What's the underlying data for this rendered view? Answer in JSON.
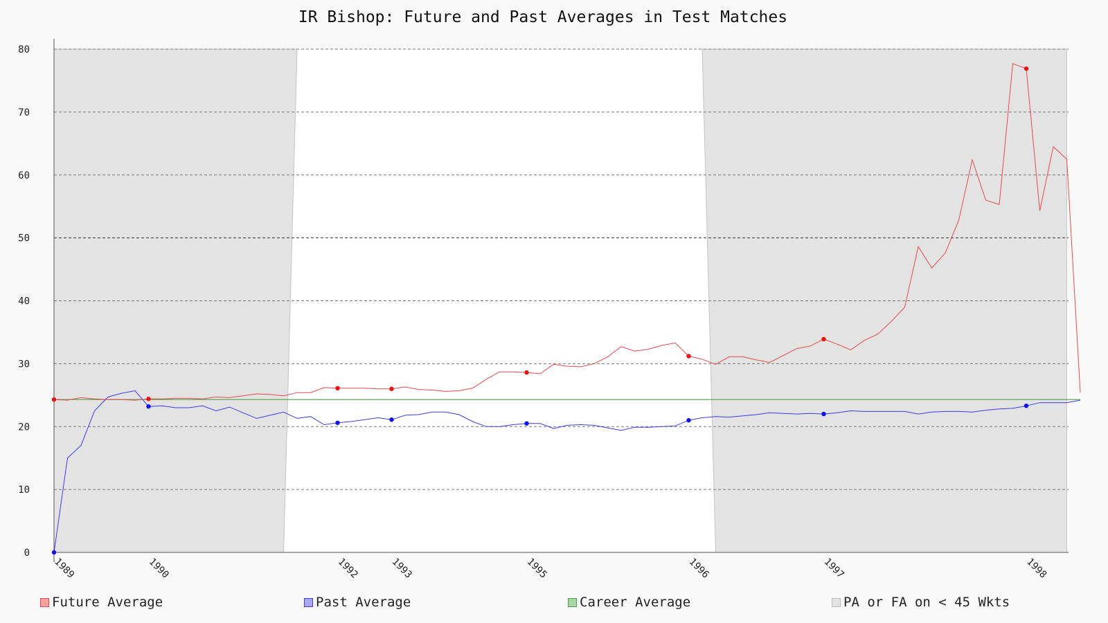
{
  "chart_data": {
    "type": "line",
    "title": "IR Bishop: Future and Past Averages in Test Matches",
    "xlabel": "",
    "ylabel": "",
    "ylim": [
      0,
      80
    ],
    "yticks": [
      0,
      10,
      20,
      30,
      40,
      50,
      60,
      70,
      80
    ],
    "grid": true,
    "legend_position": "bottom",
    "x_tick_labels": [
      {
        "label": "1989",
        "index": 0
      },
      {
        "label": "1990",
        "index": 7
      },
      {
        "label": "1992",
        "index": 21
      },
      {
        "label": "1993",
        "index": 25
      },
      {
        "label": "1995",
        "index": 35
      },
      {
        "label": "1996",
        "index": 47
      },
      {
        "label": "1997",
        "index": 57
      },
      {
        "label": "1998",
        "index": 72
      }
    ],
    "shaded_regions": [
      {
        "name": "PA or FA on < 45 Wkts",
        "from_index": 0,
        "to_index_top": 18,
        "to_index_bottom": 17
      },
      {
        "name": "PA or FA on < 45 Wkts",
        "from_index_top": 48,
        "from_index_bottom": 49,
        "to_index": 75
      }
    ],
    "series": [
      {
        "name": "Future Average",
        "color": "#e8474b",
        "values": [
          24.3,
          24.2,
          24.6,
          24.4,
          24.3,
          24.3,
          24.2,
          24.4,
          24.4,
          24.5,
          24.5,
          24.4,
          24.7,
          24.6,
          24.9,
          25.2,
          25.1,
          24.9,
          25.4,
          25.4,
          26.2,
          26.1,
          26.1,
          26.1,
          26.0,
          26.0,
          26.3,
          25.9,
          25.8,
          25.6,
          25.7,
          26.1,
          27.5,
          28.7,
          28.7,
          28.6,
          28.4,
          29.9,
          29.6,
          29.5,
          30.0,
          31.1,
          32.7,
          32.0,
          32.3,
          32.9,
          33.3,
          31.2,
          30.7,
          29.9,
          31.1,
          31.1,
          30.6,
          30.2,
          31.3,
          32.4,
          32.8,
          33.9,
          33.1,
          32.2,
          33.7,
          34.7,
          36.7,
          39.0,
          48.6,
          45.2,
          47.6,
          52.8,
          62.4,
          56.0,
          55.3,
          77.7,
          76.9,
          54.3,
          64.5,
          62.5,
          25.4
        ]
      },
      {
        "name": "Past Average",
        "color": "#3a3aee",
        "values": [
          0.0,
          15.0,
          17.0,
          22.5,
          24.7,
          25.3,
          25.7,
          23.2,
          23.3,
          23.0,
          23.0,
          23.3,
          22.5,
          23.1,
          22.2,
          21.3,
          21.8,
          22.3,
          21.3,
          21.6,
          20.3,
          20.6,
          20.8,
          21.1,
          21.4,
          21.1,
          21.8,
          21.9,
          22.3,
          22.3,
          21.9,
          20.8,
          20.0,
          20.0,
          20.3,
          20.5,
          20.5,
          19.7,
          20.2,
          20.3,
          20.2,
          19.8,
          19.4,
          19.9,
          19.9,
          20.0,
          20.1,
          21.0,
          21.4,
          21.6,
          21.5,
          21.7,
          21.9,
          22.2,
          22.1,
          22.0,
          22.1,
          22.0,
          22.2,
          22.5,
          22.4,
          22.4,
          22.4,
          22.4,
          22.0,
          22.3,
          22.4,
          22.4,
          22.3,
          22.6,
          22.8,
          22.9,
          23.3,
          23.8,
          23.8,
          23.8,
          24.2
        ]
      },
      {
        "name": "Career Average",
        "color": "#4aa04a",
        "values": [
          24.3,
          24.3
        ]
      }
    ],
    "marked_points": {
      "Future Average": [
        0,
        7,
        21,
        25,
        35,
        47,
        57,
        72
      ],
      "Past Average": [
        0,
        7,
        21,
        25,
        35,
        47,
        57,
        72
      ]
    },
    "legend": [
      {
        "label": "Future Average",
        "color": "#f4a3a3",
        "border": "#e8474b"
      },
      {
        "label": "Past Average",
        "color": "#a9a9f2",
        "border": "#3a3aee"
      },
      {
        "label": "Career Average",
        "color": "#a6d6a6",
        "border": "#4aa04a"
      },
      {
        "label": "PA or FA on < 45 Wkts",
        "color": "#e3e3e3",
        "border": "#b8b8b8"
      }
    ]
  }
}
